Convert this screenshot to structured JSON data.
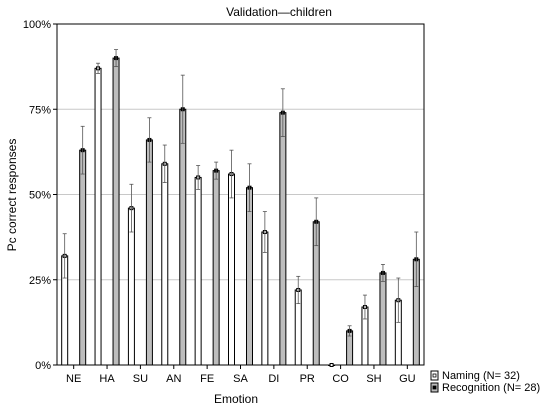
{
  "chart_data": {
    "type": "bar",
    "title": "Validation—children",
    "xlabel": "Emotion",
    "ylabel": "Pc correct responses",
    "categories": [
      "NE",
      "HA",
      "SU",
      "AN",
      "FE",
      "SA",
      "DI",
      "PR",
      "CO",
      "SH",
      "GU"
    ],
    "yticks": [
      "0%",
      "25%",
      "50%",
      "75%",
      "100%"
    ],
    "ylim": [
      0,
      100
    ],
    "grid": true,
    "legend_position": "bottom-right",
    "series": [
      {
        "name": "Naming (N= 32)",
        "color": "#ffffff",
        "values": [
          32,
          87,
          46,
          59,
          55,
          56,
          39,
          22,
          0,
          17,
          19
        ],
        "error": [
          6.5,
          1.5,
          7,
          5.5,
          3.5,
          7,
          6,
          4,
          0,
          3.5,
          6.5
        ]
      },
      {
        "name": "Recognition (N= 28)",
        "color": "#bdbdbd",
        "values": [
          63,
          90,
          66,
          75,
          57,
          52,
          74,
          42,
          10,
          27,
          31
        ],
        "error": [
          7,
          2.5,
          6.5,
          10,
          2.5,
          7,
          7,
          7,
          1.5,
          2.5,
          8
        ]
      }
    ]
  }
}
